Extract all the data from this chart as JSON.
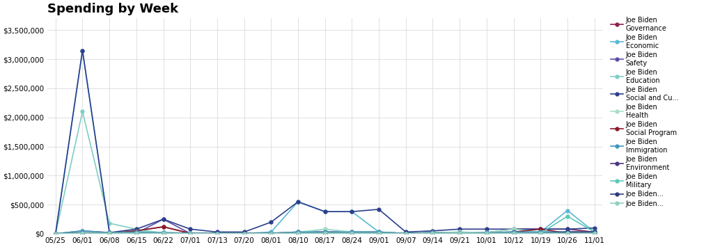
{
  "title": "Spending by Week",
  "title_fontsize": 13,
  "title_fontweight": "bold",
  "background_color": "#ffffff",
  "plot_bg_color": "#ffffff",
  "dates": [
    "05/25",
    "06/01",
    "06/08",
    "06/15",
    "06/22",
    "07/01",
    "07/13",
    "07/20",
    "08/01",
    "08/10",
    "08/17",
    "08/24",
    "09/01",
    "09/07",
    "09/14",
    "09/21",
    "10/01",
    "10/12",
    "10/19",
    "10/26",
    "11/01"
  ],
  "series": [
    {
      "label": "Joe Biden\nGovernance",
      "color": "#8B2252",
      "values": [
        0,
        50000,
        20000,
        50000,
        120000,
        10000,
        5000,
        5000,
        10000,
        30000,
        30000,
        30000,
        30000,
        5000,
        20000,
        10000,
        20000,
        80000,
        80000,
        80000,
        30000
      ]
    },
    {
      "label": "Joe Biden\nEconomic",
      "color": "#5BB8D4",
      "values": [
        0,
        3150000,
        20000,
        30000,
        20000,
        10000,
        5000,
        5000,
        30000,
        550000,
        380000,
        380000,
        30000,
        5000,
        20000,
        30000,
        20000,
        30000,
        30000,
        400000,
        30000
      ]
    },
    {
      "label": "Joe Biden\nSafety",
      "color": "#5B4EA8",
      "values": [
        0,
        20000,
        10000,
        10000,
        250000,
        5000,
        5000,
        5000,
        5000,
        30000,
        30000,
        30000,
        30000,
        5000,
        20000,
        10000,
        20000,
        30000,
        30000,
        30000,
        30000
      ]
    },
    {
      "label": "Joe Biden\nEducation",
      "color": "#7ECEC4",
      "values": [
        0,
        2100000,
        180000,
        80000,
        10000,
        5000,
        5000,
        5000,
        5000,
        10000,
        80000,
        30000,
        30000,
        5000,
        20000,
        10000,
        20000,
        80000,
        30000,
        30000,
        10000
      ]
    },
    {
      "label": "Joe Biden\nSocial and Cu...",
      "color": "#2B3F8C",
      "values": [
        0,
        3150000,
        20000,
        80000,
        250000,
        80000,
        30000,
        30000,
        200000,
        550000,
        380000,
        380000,
        420000,
        30000,
        50000,
        80000,
        80000,
        80000,
        80000,
        80000,
        100000
      ]
    },
    {
      "label": "Joe Biden\nHealth",
      "color": "#A8E0C8",
      "values": [
        0,
        50000,
        10000,
        50000,
        20000,
        10000,
        5000,
        5000,
        10000,
        30000,
        80000,
        30000,
        30000,
        5000,
        20000,
        30000,
        20000,
        80000,
        30000,
        10000,
        30000
      ]
    },
    {
      "label": "Joe Biden\nSocial Program",
      "color": "#8B1A2A",
      "values": [
        0,
        10000,
        10000,
        50000,
        120000,
        5000,
        5000,
        5000,
        5000,
        10000,
        10000,
        10000,
        10000,
        5000,
        10000,
        10000,
        10000,
        30000,
        80000,
        10000,
        10000
      ]
    },
    {
      "label": "Joe Biden\nImmigration",
      "color": "#4096BE",
      "values": [
        0,
        50000,
        20000,
        30000,
        20000,
        10000,
        5000,
        5000,
        10000,
        30000,
        30000,
        30000,
        30000,
        5000,
        20000,
        10000,
        20000,
        30000,
        30000,
        30000,
        30000
      ]
    },
    {
      "label": "Joe Biden\nEnvironment",
      "color": "#4A3580",
      "values": [
        0,
        10000,
        10000,
        10000,
        10000,
        5000,
        5000,
        5000,
        5000,
        10000,
        10000,
        10000,
        10000,
        5000,
        10000,
        10000,
        10000,
        10000,
        10000,
        10000,
        10000
      ]
    },
    {
      "label": "Joe Biden\nMilitary",
      "color": "#5DC8B8",
      "values": [
        0,
        10000,
        10000,
        10000,
        10000,
        5000,
        5000,
        5000,
        5000,
        10000,
        10000,
        10000,
        10000,
        5000,
        10000,
        10000,
        10000,
        10000,
        10000,
        300000,
        30000
      ]
    },
    {
      "label": "Joe Biden...",
      "color": "#2D3A7A",
      "values": [
        0,
        10000,
        10000,
        10000,
        10000,
        5000,
        5000,
        5000,
        5000,
        10000,
        10000,
        10000,
        10000,
        5000,
        10000,
        10000,
        10000,
        10000,
        10000,
        30000,
        30000
      ]
    },
    {
      "label": "Joe Biden...",
      "color": "#8FCFC0",
      "values": [
        0,
        10000,
        10000,
        10000,
        10000,
        5000,
        5000,
        5000,
        5000,
        10000,
        10000,
        10000,
        10000,
        5000,
        10000,
        10000,
        10000,
        10000,
        10000,
        10000,
        10000
      ]
    }
  ],
  "ylim": [
    0,
    3700000
  ],
  "yticks": [
    0,
    500000,
    1000000,
    1500000,
    2000000,
    2500000,
    3000000,
    3500000
  ],
  "grid_color": "#e0e0e0",
  "legend_fontsize": 7,
  "tick_fontsize": 7.5,
  "markersize": 3.5,
  "linewidth": 1.2
}
